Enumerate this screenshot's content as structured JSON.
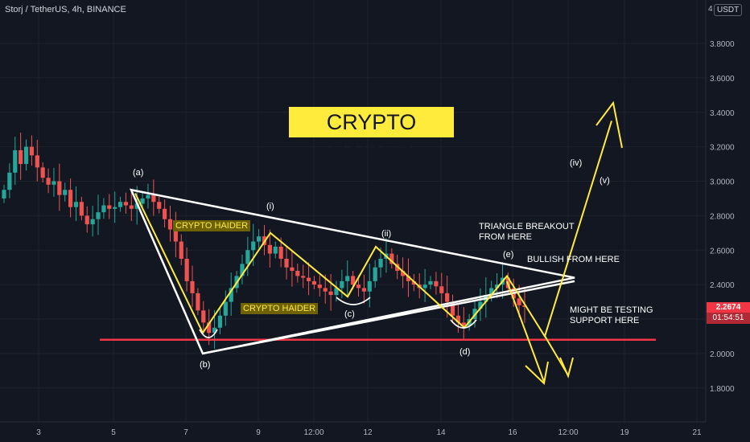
{
  "header": {
    "symbol": "Storj / TetherUS, 4h, BINANCE",
    "unit": "USDT"
  },
  "price_axis": {
    "ticks": [
      "4",
      "3.8000",
      "3.6000",
      "3.4000",
      "3.2000",
      "3.0000",
      "2.8000",
      "2.6000",
      "2.4000",
      "2.2000",
      "2.0000",
      "1.8000"
    ],
    "last_price": "2.2674",
    "countdown": "01:54:51"
  },
  "time_axis": {
    "ticks": [
      "3",
      "5",
      "7",
      "9",
      "12:00",
      "12",
      "14",
      "16",
      "12:00",
      "19",
      "21"
    ]
  },
  "annotations": {
    "title": "CRYPTO HAIDER",
    "label_1": "CRYPTO HAIDER",
    "label_2": "CRYPTO HAIDER",
    "a": "(a)",
    "b": "(b)",
    "c": "(c)",
    "d": "(d)",
    "e": "(e)",
    "i": "(i)",
    "ii": "(ii)",
    "iv": "(iv)",
    "v": "(v)",
    "breakout": "TRIANGLE BREAKOUT\nFROM HERE",
    "bullish": "BULLISH FROM HERE",
    "support": "MIGHT BE TESTING\nSUPPORT HERE"
  },
  "colors": {
    "background": "#131722",
    "up": "#26a69a",
    "down": "#ef5350",
    "triangle": "#ffffff",
    "wave": "#ffeb3b",
    "support_line": "#f23645"
  },
  "chart_data": {
    "type": "candlestick",
    "symbol": "STORJ/USDT",
    "timeframe": "4h",
    "exchange": "BINANCE",
    "ylim": [
      1.7,
      4.0
    ],
    "last_price": 2.2674,
    "support_level": 2.08,
    "triangle": {
      "upper_from": 2.95,
      "upper_to": 2.44,
      "lower_from": 2.0,
      "lower_to": 2.42
    },
    "wave_path": [
      2.93,
      2.12,
      2.7,
      2.33,
      2.62,
      2.15,
      2.45,
      2.1,
      3.35
    ],
    "candles_close": [
      2.95,
      3.05,
      3.18,
      3.1,
      3.2,
      3.15,
      3.08,
      3.02,
      2.98,
      3.0,
      2.92,
      2.95,
      2.85,
      2.88,
      2.8,
      2.75,
      2.78,
      2.82,
      2.86,
      2.84,
      2.85,
      2.88,
      2.86,
      2.84,
      2.87,
      2.9,
      2.92,
      2.88,
      2.84,
      2.78,
      2.72,
      2.65,
      2.55,
      2.42,
      2.35,
      2.25,
      2.18,
      2.12,
      2.15,
      2.22,
      2.3,
      2.38,
      2.45,
      2.52,
      2.6,
      2.65,
      2.68,
      2.63,
      2.58,
      2.62,
      2.55,
      2.5,
      2.48,
      2.45,
      2.44,
      2.42,
      2.4,
      2.38,
      2.36,
      2.34,
      2.38,
      2.42,
      2.45,
      2.4,
      2.38,
      2.36,
      2.42,
      2.5,
      2.55,
      2.58,
      2.52,
      2.48,
      2.45,
      2.42,
      2.4,
      2.38,
      2.4,
      2.42,
      2.39,
      2.35,
      2.3,
      2.22,
      2.18,
      2.16,
      2.2,
      2.26,
      2.3,
      2.34,
      2.38,
      2.4,
      2.44,
      2.38,
      2.32,
      2.28,
      2.27
    ]
  }
}
